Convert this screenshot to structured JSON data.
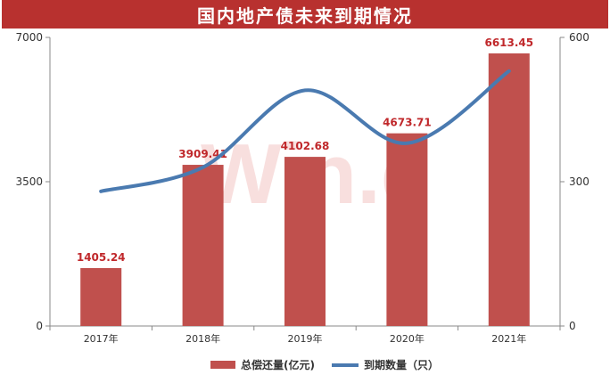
{
  "title": "国内地产债未来到期情况",
  "watermark": "Win.d",
  "colors": {
    "title_bg": "#b8312f",
    "bar": "#c0504d",
    "line": "#4a7ab0",
    "label": "#c0282b",
    "axis_text": "#333333"
  },
  "chart_data": {
    "type": "bar",
    "title": "国内地产债未来到期情况",
    "categories": [
      "2017年",
      "2018年",
      "2019年",
      "2020年",
      "2021年"
    ],
    "series": [
      {
        "name": "总偿还量(亿元)",
        "type": "bar",
        "axis": "left",
        "values": [
          1405.24,
          3909.41,
          4102.68,
          4673.71,
          6613.45
        ],
        "labels": [
          "1405.24",
          "3909.41",
          "4102.68",
          "4673.71",
          "6613.45"
        ]
      },
      {
        "name": "到期数量（只）",
        "type": "line",
        "axis": "right",
        "values": [
          280,
          330,
          490,
          380,
          530
        ]
      }
    ],
    "left_axis": {
      "range": [
        0,
        7000
      ],
      "ticks": [
        "0",
        "3500",
        "7000"
      ]
    },
    "right_axis": {
      "range": [
        0,
        600
      ],
      "ticks": [
        "0",
        "300",
        "600"
      ]
    },
    "grid": false,
    "legend_position": "bottom"
  }
}
